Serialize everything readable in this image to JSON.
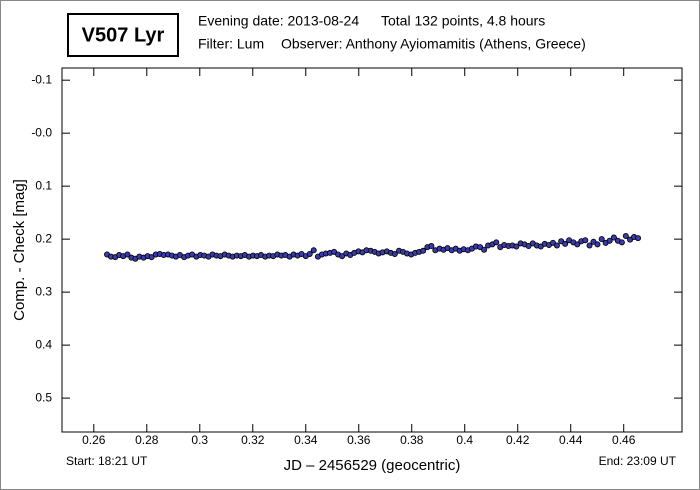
{
  "chart_data": {
    "type": "scatter",
    "title": "V507 Lyr",
    "evening_date": "Evening date: 2013-08-24",
    "total": "Total 132 points, 4.8 hours",
    "filter": "Filter: Lum",
    "observer": "Observer: Anthony Ayiomamitis (Athens, Greece)",
    "x_label": "JD – 2456529  (geocentric)",
    "y_label": "Comp. - Check [mag]",
    "start": "Start: 18:21 UT",
    "end": "End: 23:09 UT",
    "y_inverted": true,
    "color": "#3a3aa8",
    "xlim": [
      0.248,
      0.482
    ],
    "ylim": [
      -0.123,
      0.564
    ],
    "xticks": [
      0.26,
      0.28,
      0.3,
      0.32,
      0.34,
      0.36,
      0.38,
      0.4,
      0.42,
      0.44,
      0.46
    ],
    "yticks": [
      -0.1,
      {
        "value": 0,
        "label": "-0.0"
      },
      0.1,
      0.2,
      0.3,
      0.4,
      0.5
    ],
    "x": [
      0.265,
      0.2665,
      0.2681,
      0.2696,
      0.2711,
      0.2727,
      0.2742,
      0.2757,
      0.2772,
      0.2788,
      0.2803,
      0.2818,
      0.2834,
      0.2849,
      0.2864,
      0.288,
      0.2895,
      0.291,
      0.2925,
      0.2941,
      0.2956,
      0.2971,
      0.2987,
      0.3002,
      0.3017,
      0.3033,
      0.3048,
      0.3063,
      0.3078,
      0.3094,
      0.3109,
      0.3124,
      0.314,
      0.3155,
      0.317,
      0.3186,
      0.3201,
      0.3216,
      0.3231,
      0.3247,
      0.3262,
      0.3277,
      0.3293,
      0.3308,
      0.3323,
      0.3339,
      0.3354,
      0.3369,
      0.3384,
      0.34,
      0.3415,
      0.343,
      0.3446,
      0.3461,
      0.3476,
      0.3492,
      0.3507,
      0.3522,
      0.3537,
      0.3553,
      0.3568,
      0.3583,
      0.3599,
      0.3614,
      0.3629,
      0.3645,
      0.366,
      0.3675,
      0.369,
      0.3706,
      0.3721,
      0.3736,
      0.3752,
      0.3767,
      0.3782,
      0.3798,
      0.3813,
      0.3828,
      0.3843,
      0.3859,
      0.3874,
      0.3889,
      0.3905,
      0.392,
      0.3935,
      0.3951,
      0.3966,
      0.3981,
      0.3996,
      0.4012,
      0.4027,
      0.4042,
      0.4058,
      0.4073,
      0.4088,
      0.4104,
      0.4119,
      0.4134,
      0.4149,
      0.4165,
      0.418,
      0.4195,
      0.4211,
      0.4226,
      0.4241,
      0.4257,
      0.4272,
      0.4287,
      0.4302,
      0.4318,
      0.4333,
      0.4348,
      0.4364,
      0.4379,
      0.4394,
      0.441,
      0.4425,
      0.444,
      0.4455,
      0.4471,
      0.4486,
      0.4501,
      0.4517,
      0.4532,
      0.4547,
      0.4563,
      0.4578,
      0.4593,
      0.4608,
      0.4624,
      0.4639,
      0.4654
    ],
    "values": [
      0.229,
      0.233,
      0.234,
      0.23,
      0.232,
      0.229,
      0.235,
      0.237,
      0.233,
      0.235,
      0.232,
      0.234,
      0.229,
      0.228,
      0.23,
      0.229,
      0.231,
      0.233,
      0.23,
      0.234,
      0.231,
      0.229,
      0.233,
      0.23,
      0.231,
      0.233,
      0.229,
      0.231,
      0.232,
      0.229,
      0.231,
      0.233,
      0.231,
      0.232,
      0.23,
      0.233,
      0.231,
      0.232,
      0.23,
      0.233,
      0.231,
      0.232,
      0.229,
      0.231,
      0.23,
      0.233,
      0.229,
      0.231,
      0.228,
      0.232,
      0.228,
      0.221,
      0.233,
      0.229,
      0.227,
      0.226,
      0.224,
      0.229,
      0.232,
      0.227,
      0.23,
      0.226,
      0.223,
      0.225,
      0.221,
      0.222,
      0.224,
      0.227,
      0.225,
      0.223,
      0.226,
      0.228,
      0.222,
      0.224,
      0.227,
      0.229,
      0.226,
      0.224,
      0.222,
      0.215,
      0.213,
      0.221,
      0.218,
      0.22,
      0.217,
      0.221,
      0.218,
      0.222,
      0.219,
      0.221,
      0.218,
      0.214,
      0.215,
      0.22,
      0.212,
      0.21,
      0.206,
      0.215,
      0.211,
      0.213,
      0.212,
      0.214,
      0.208,
      0.21,
      0.213,
      0.208,
      0.212,
      0.214,
      0.209,
      0.211,
      0.207,
      0.212,
      0.204,
      0.209,
      0.202,
      0.206,
      0.21,
      0.204,
      0.202,
      0.212,
      0.205,
      0.21,
      0.2,
      0.207,
      0.203,
      0.197,
      0.203,
      0.206,
      0.194,
      0.201,
      0.196,
      0.198
    ]
  }
}
